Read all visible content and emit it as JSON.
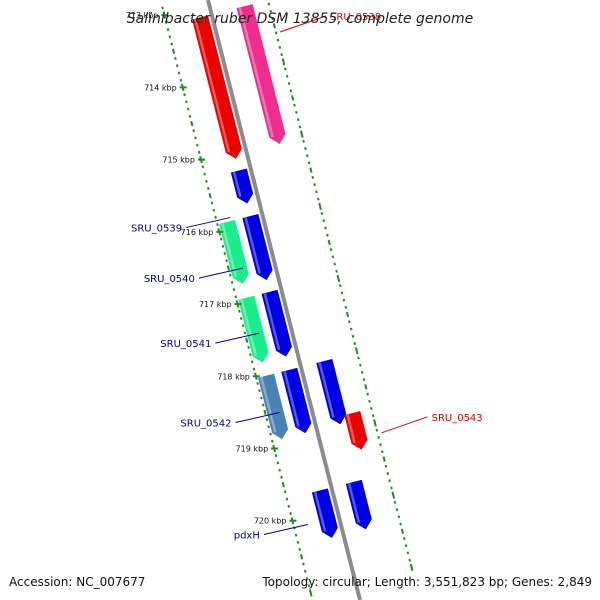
{
  "title": "Salinibacter ruber DSM 13855, complete genome",
  "footer": {
    "accession": "Accession: NC_007677",
    "topology": "Topology: circular; Length: 3,551,823 bp; Genes: 2,849"
  },
  "colors": {
    "backbone": "#8c8c8c",
    "tick": "#1e8c1e",
    "blue": "#0000e6",
    "red": "#ee0000",
    "pink": "#ee2d8f",
    "green": "#1aee8c",
    "steel": "#4a82b4",
    "label_blue": "#00008b",
    "label_red": "#dd0000"
  },
  "map": {
    "start_kbp": 713,
    "end_kbp": 720,
    "kbp_labels": [
      "713 kbp",
      "714 kbp",
      "715 kbp",
      "716 kbp",
      "717 kbp",
      "718 kbp",
      "719 kbp",
      "720 kbp"
    ],
    "features": [
      {
        "lane": 0,
        "start": 713.15,
        "end": 715.1,
        "color": "red"
      },
      {
        "lane": 1,
        "start": 713.15,
        "end": 715.05,
        "color": "pink"
      },
      {
        "lane": 0,
        "start": 715.27,
        "end": 715.72,
        "color": "blue"
      },
      {
        "lane": -1,
        "start": 715.9,
        "end": 716.75,
        "color": "green"
      },
      {
        "lane": 0,
        "start": 715.9,
        "end": 716.78,
        "color": "blue"
      },
      {
        "lane": -1,
        "start": 716.95,
        "end": 717.84,
        "color": "green"
      },
      {
        "lane": 0,
        "start": 716.95,
        "end": 717.84,
        "color": "blue"
      },
      {
        "lane": -1,
        "start": 718.03,
        "end": 718.9,
        "color": "steel"
      },
      {
        "lane": 0,
        "start": 718.03,
        "end": 718.9,
        "color": "blue"
      },
      {
        "lane": 0,
        "start": 718.03,
        "end": 718.9,
        "color": "blue"
      },
      {
        "lane": 1.2,
        "start": 718.8,
        "end": 719.3,
        "color": "red"
      },
      {
        "lane": 0,
        "start": 719.7,
        "end": 720.35,
        "color": "blue"
      },
      {
        "lane": 0.5,
        "start": 719.7,
        "end": 720.35,
        "color": "blue"
      }
    ],
    "labels": [
      {
        "text": "SRU_0538",
        "color": "label_red",
        "side": "right",
        "kbp": 713.6
      },
      {
        "text": "SRU_0539",
        "color": "label_blue",
        "side": "left",
        "kbp": 715.85
      },
      {
        "text": "SRU_0540",
        "color": "label_blue",
        "side": "left",
        "kbp": 716.55
      },
      {
        "text": "SRU_0541",
        "color": "label_blue",
        "side": "left",
        "kbp": 717.45
      },
      {
        "text": "SRU_0542",
        "color": "label_blue",
        "side": "left",
        "kbp": 718.55
      },
      {
        "text": "SRU_0543",
        "color": "label_red",
        "side": "right",
        "kbp": 719.15
      },
      {
        "text": "pdxH",
        "color": "label_blue",
        "side": "left",
        "kbp": 720.1
      }
    ]
  }
}
